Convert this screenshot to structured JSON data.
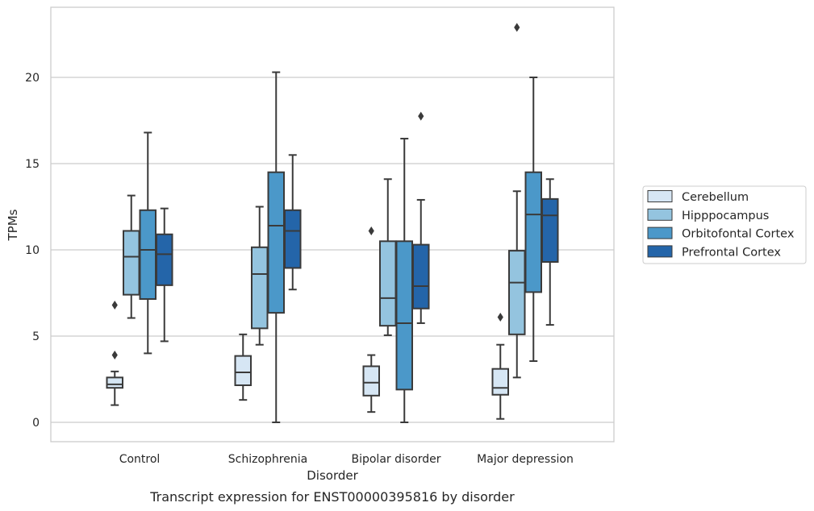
{
  "caption": "Transcript expression for ENST00000395816 by disorder",
  "chart_data": {
    "type": "box",
    "xlabel": "Disorder",
    "ylabel": "TPMs",
    "ylim": [
      -1,
      24
    ],
    "yticks": [
      0,
      5,
      10,
      15,
      20
    ],
    "grid": "horizontal",
    "legend_position": "right",
    "categories": [
      "Control",
      "Schizophrenia",
      "Bipolar disorder",
      "Major depression"
    ],
    "series": [
      {
        "name": "Cerebellum",
        "color": "#d6e6f4",
        "boxes": [
          {
            "whisker_low": 1.0,
            "q1": 2.0,
            "median": 2.2,
            "q3": 2.6,
            "whisker_high": 2.95,
            "outliers": [
              3.9,
              6.8
            ]
          },
          {
            "whisker_low": 1.3,
            "q1": 2.15,
            "median": 2.9,
            "q3": 3.85,
            "whisker_high": 5.1,
            "outliers": []
          },
          {
            "whisker_low": 0.6,
            "q1": 1.55,
            "median": 2.3,
            "q3": 3.25,
            "whisker_high": 3.9,
            "outliers": [
              11.1
            ]
          },
          {
            "whisker_low": 0.2,
            "q1": 1.6,
            "median": 2.0,
            "q3": 3.1,
            "whisker_high": 4.5,
            "outliers": [
              6.1
            ]
          }
        ]
      },
      {
        "name": "Hipppocampus",
        "color": "#94c4df",
        "boxes": [
          {
            "whisker_low": 6.05,
            "q1": 7.4,
            "median": 9.6,
            "q3": 11.1,
            "whisker_high": 13.15,
            "outliers": []
          },
          {
            "whisker_low": 4.5,
            "q1": 5.45,
            "median": 8.6,
            "q3": 10.15,
            "whisker_high": 12.5,
            "outliers": []
          },
          {
            "whisker_low": 5.05,
            "q1": 5.6,
            "median": 7.2,
            "q3": 10.5,
            "whisker_high": 14.1,
            "outliers": []
          },
          {
            "whisker_low": 2.6,
            "q1": 5.1,
            "median": 8.1,
            "q3": 9.95,
            "whisker_high": 13.4,
            "outliers": [
              22.9
            ]
          }
        ]
      },
      {
        "name": "Orbitofontal Cortex",
        "color": "#4b98c9",
        "boxes": [
          {
            "whisker_low": 4.0,
            "q1": 7.15,
            "median": 10.0,
            "q3": 12.3,
            "whisker_high": 16.8,
            "outliers": []
          },
          {
            "whisker_low": 0.0,
            "q1": 6.35,
            "median": 11.4,
            "q3": 14.5,
            "whisker_high": 20.3,
            "outliers": []
          },
          {
            "whisker_low": 0.0,
            "q1": 1.9,
            "median": 5.75,
            "q3": 10.5,
            "whisker_high": 16.45,
            "outliers": []
          },
          {
            "whisker_low": 3.55,
            "q1": 7.55,
            "median": 12.05,
            "q3": 14.5,
            "whisker_high": 20.0,
            "outliers": []
          }
        ]
      },
      {
        "name": "Prefrontal Cortex",
        "color": "#2465a9",
        "boxes": [
          {
            "whisker_low": 4.7,
            "q1": 7.95,
            "median": 9.75,
            "q3": 10.9,
            "whisker_high": 12.4,
            "outliers": []
          },
          {
            "whisker_low": 7.7,
            "q1": 8.95,
            "median": 11.1,
            "q3": 12.3,
            "whisker_high": 15.5,
            "outliers": []
          },
          {
            "whisker_low": 5.75,
            "q1": 6.6,
            "median": 7.9,
            "q3": 10.3,
            "whisker_high": 12.9,
            "outliers": [
              17.75
            ]
          },
          {
            "whisker_low": 5.65,
            "q1": 9.3,
            "median": 12.0,
            "q3": 12.95,
            "whisker_high": 14.1,
            "outliers": []
          }
        ]
      }
    ]
  }
}
